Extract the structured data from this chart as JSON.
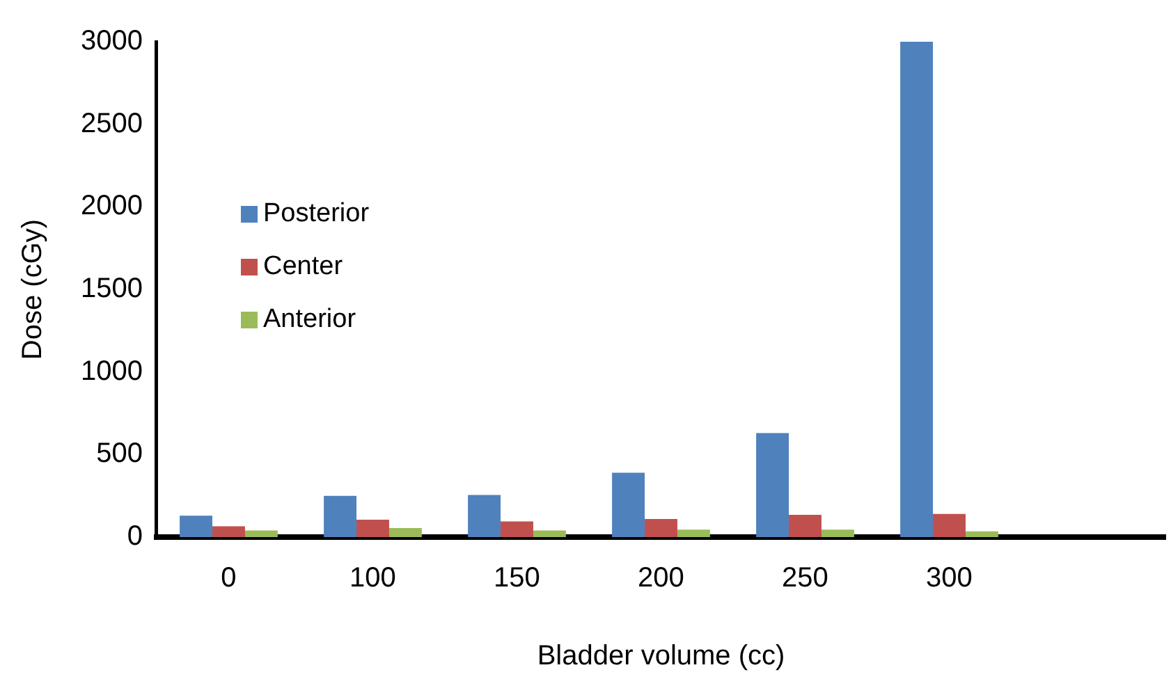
{
  "chart_data": {
    "type": "bar",
    "xlabel": "Bladder volume (cc)",
    "ylabel": "Dose (cGy)",
    "categories": [
      "0",
      "100",
      "150",
      "200",
      "250",
      "300",
      null
    ],
    "series": [
      {
        "name": "Posterior",
        "color": "#4f81bd",
        "values": [
          130,
          250,
          255,
          390,
          630,
          3000,
          null
        ]
      },
      {
        "name": "Center",
        "color": "#c0504d",
        "values": [
          65,
          105,
          95,
          110,
          135,
          140,
          null
        ]
      },
      {
        "name": "Anterior",
        "color": "#9bbb59",
        "values": [
          40,
          55,
          40,
          45,
          45,
          35,
          null
        ]
      }
    ],
    "ylim": [
      0,
      3000
    ],
    "yticks": [
      0,
      500,
      1000,
      1500,
      2000,
      2500,
      3000
    ],
    "grid": false,
    "legend": "left"
  }
}
